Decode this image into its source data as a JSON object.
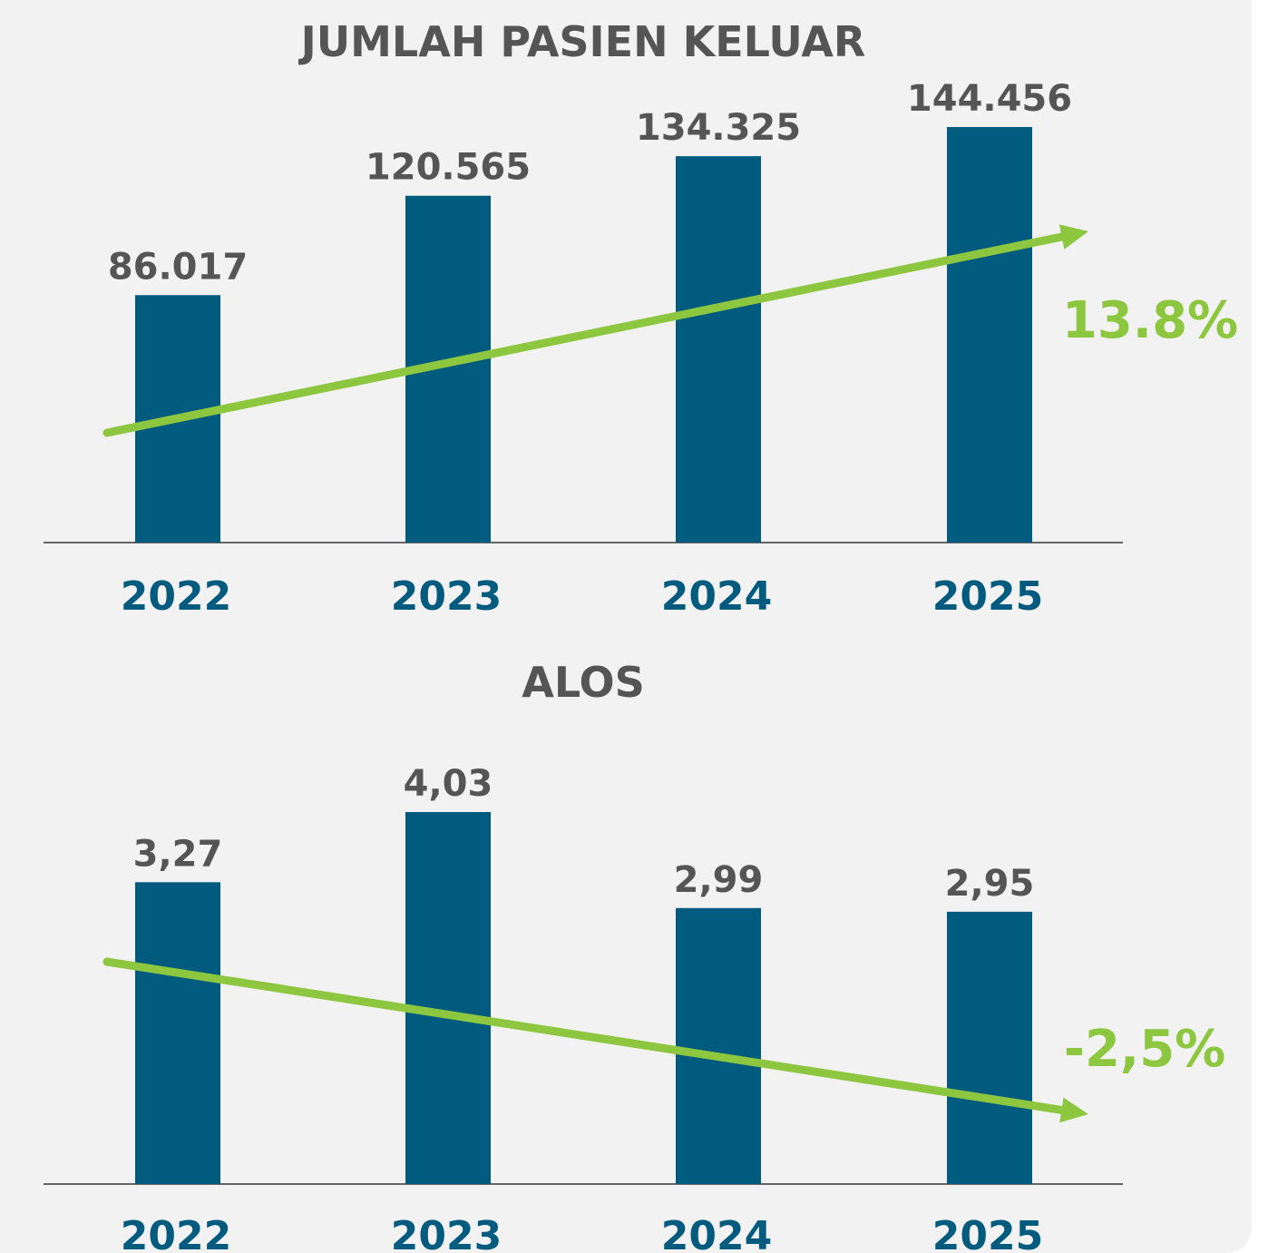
{
  "chart_data": [
    {
      "type": "bar",
      "title": "JUMLAH PASIEN KELUAR",
      "categories": [
        "2022",
        "2023",
        "2024",
        "2025"
      ],
      "values": [
        86017,
        120565,
        134325,
        144456
      ],
      "value_labels": [
        "86.017",
        "120.565",
        "134.325",
        "144.456"
      ],
      "color": "#005b7f",
      "annotation": "13.8%",
      "annotation_color": "#8dc63f"
    },
    {
      "type": "bar",
      "title": "ALOS",
      "categories": [
        "2022",
        "2023",
        "2024",
        "2025"
      ],
      "values": [
        3.27,
        4.03,
        2.99,
        2.95
      ],
      "value_labels": [
        "3,27",
        "4,03",
        "2,99",
        "2,95"
      ],
      "color": "#005b7f",
      "annotation": "-2,5%",
      "annotation_color": "#8dc63f"
    }
  ]
}
